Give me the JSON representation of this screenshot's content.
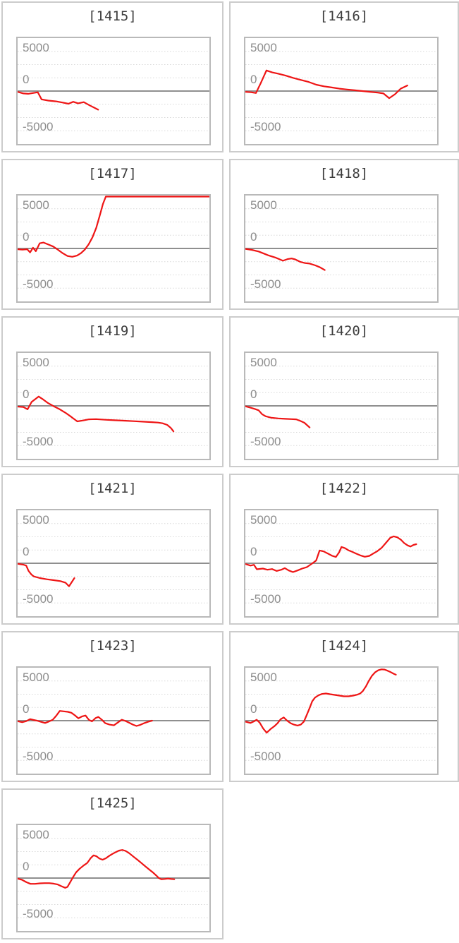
{
  "page": {
    "background": "#ffffff"
  },
  "colors": {
    "line": "#ee1515",
    "grid_dotted": "#d9d9d9",
    "zero_line": "#8f8f8f",
    "plot_border": "#b9b9b9",
    "box_border": "#cccccc",
    "title": "#3d3d3d",
    "tick_label": "#8d8d8d"
  },
  "axis": {
    "tick_labels": [
      "5000",
      "0",
      "-5000"
    ],
    "tick_values": [
      5000,
      0,
      -5000
    ],
    "ylim": [
      -6667,
      6667
    ],
    "gridline_interval": 1667,
    "zero_line_solid": true,
    "grid_on": true
  },
  "chart_data": [
    {
      "type": "line",
      "title": "[1415]",
      "ylim": [
        -6667,
        6667
      ],
      "points": [
        [
          0,
          -100
        ],
        [
          0.03,
          -300
        ],
        [
          0.055,
          -350
        ],
        [
          0.08,
          -250
        ],
        [
          0.105,
          -150
        ],
        [
          0.125,
          -1050
        ],
        [
          0.16,
          -1200
        ],
        [
          0.2,
          -1300
        ],
        [
          0.235,
          -1450
        ],
        [
          0.265,
          -1600
        ],
        [
          0.29,
          -1350
        ],
        [
          0.315,
          -1550
        ],
        [
          0.345,
          -1400
        ],
        [
          0.375,
          -1800
        ],
        [
          0.42,
          -2350
        ]
      ]
    },
    {
      "type": "line",
      "title": "[1416]",
      "ylim": [
        -6667,
        6667
      ],
      "points": [
        [
          0,
          -100
        ],
        [
          0.03,
          -150
        ],
        [
          0.055,
          -250
        ],
        [
          0.08,
          1000
        ],
        [
          0.11,
          2600
        ],
        [
          0.14,
          2350
        ],
        [
          0.17,
          2200
        ],
        [
          0.21,
          1950
        ],
        [
          0.25,
          1650
        ],
        [
          0.29,
          1400
        ],
        [
          0.33,
          1150
        ],
        [
          0.37,
          800
        ],
        [
          0.41,
          600
        ],
        [
          0.45,
          450
        ],
        [
          0.49,
          300
        ],
        [
          0.53,
          200
        ],
        [
          0.57,
          100
        ],
        [
          0.61,
          0
        ],
        [
          0.65,
          -100
        ],
        [
          0.69,
          -200
        ],
        [
          0.72,
          -300
        ],
        [
          0.75,
          -900
        ],
        [
          0.78,
          -400
        ],
        [
          0.81,
          300
        ],
        [
          0.845,
          700
        ]
      ]
    },
    {
      "type": "line",
      "title": "[1417]",
      "ylim": [
        -6667,
        6667
      ],
      "points": [
        [
          0,
          -100
        ],
        [
          0.025,
          -150
        ],
        [
          0.05,
          -100
        ],
        [
          0.065,
          -500
        ],
        [
          0.08,
          100
        ],
        [
          0.095,
          -350
        ],
        [
          0.115,
          650
        ],
        [
          0.135,
          750
        ],
        [
          0.16,
          500
        ],
        [
          0.185,
          250
        ],
        [
          0.21,
          -150
        ],
        [
          0.235,
          -600
        ],
        [
          0.26,
          -950
        ],
        [
          0.285,
          -1050
        ],
        [
          0.31,
          -900
        ],
        [
          0.33,
          -600
        ],
        [
          0.35,
          -150
        ],
        [
          0.37,
          500
        ],
        [
          0.39,
          1400
        ],
        [
          0.41,
          2600
        ],
        [
          0.43,
          4300
        ],
        [
          0.445,
          5600
        ],
        [
          0.46,
          6700
        ],
        [
          1,
          6700
        ]
      ]
    },
    {
      "type": "line",
      "title": "[1418]",
      "ylim": [
        -6667,
        6667
      ],
      "points": [
        [
          0,
          -50
        ],
        [
          0.033,
          -175
        ],
        [
          0.069,
          -380
        ],
        [
          0.105,
          -730
        ],
        [
          0.123,
          -900
        ],
        [
          0.16,
          -1170
        ],
        [
          0.196,
          -1550
        ],
        [
          0.22,
          -1345
        ],
        [
          0.241,
          -1260
        ],
        [
          0.26,
          -1375
        ],
        [
          0.287,
          -1700
        ],
        [
          0.311,
          -1840
        ],
        [
          0.335,
          -1900
        ],
        [
          0.365,
          -2135
        ],
        [
          0.389,
          -2370
        ],
        [
          0.414,
          -2720
        ]
      ]
    },
    {
      "type": "line",
      "title": "[1419]",
      "ylim": [
        -6667,
        6667
      ],
      "points": [
        [
          0,
          -90
        ],
        [
          0.03,
          -150
        ],
        [
          0.052,
          -440
        ],
        [
          0.073,
          500
        ],
        [
          0.11,
          1170
        ],
        [
          0.134,
          790
        ],
        [
          0.159,
          350
        ],
        [
          0.189,
          -60
        ],
        [
          0.22,
          -440
        ],
        [
          0.25,
          -880
        ],
        [
          0.28,
          -1400
        ],
        [
          0.311,
          -1960
        ],
        [
          0.341,
          -1840
        ],
        [
          0.372,
          -1700
        ],
        [
          0.409,
          -1670
        ],
        [
          0.457,
          -1755
        ],
        [
          0.506,
          -1815
        ],
        [
          0.555,
          -1870
        ],
        [
          0.604,
          -1930
        ],
        [
          0.652,
          -1990
        ],
        [
          0.701,
          -2050
        ],
        [
          0.732,
          -2110
        ],
        [
          0.756,
          -2195
        ],
        [
          0.78,
          -2400
        ],
        [
          0.799,
          -2780
        ],
        [
          0.813,
          -3220
        ]
      ]
    },
    {
      "type": "line",
      "title": "[1420]",
      "ylim": [
        -6667,
        6667
      ],
      "points": [
        [
          0,
          -50
        ],
        [
          0.027,
          -230
        ],
        [
          0.051,
          -410
        ],
        [
          0.069,
          -560
        ],
        [
          0.087,
          -1050
        ],
        [
          0.105,
          -1310
        ],
        [
          0.135,
          -1490
        ],
        [
          0.172,
          -1580
        ],
        [
          0.208,
          -1640
        ],
        [
          0.241,
          -1670
        ],
        [
          0.265,
          -1700
        ],
        [
          0.287,
          -1900
        ],
        [
          0.308,
          -2135
        ],
        [
          0.335,
          -2720
        ]
      ]
    },
    {
      "type": "line",
      "title": "[1421]",
      "ylim": [
        -6667,
        6667
      ],
      "points": [
        [
          0,
          -60
        ],
        [
          0.03,
          -175
        ],
        [
          0.045,
          -290
        ],
        [
          0.057,
          -960
        ],
        [
          0.071,
          -1400
        ],
        [
          0.085,
          -1665
        ],
        [
          0.116,
          -1870
        ],
        [
          0.152,
          -2015
        ],
        [
          0.189,
          -2135
        ],
        [
          0.223,
          -2250
        ],
        [
          0.25,
          -2455
        ],
        [
          0.268,
          -2895
        ],
        [
          0.296,
          -1870
        ]
      ]
    },
    {
      "type": "line",
      "title": "[1422]",
      "ylim": [
        -6667,
        6667
      ],
      "points": [
        [
          0,
          -90
        ],
        [
          0.027,
          -290
        ],
        [
          0.045,
          -200
        ],
        [
          0.06,
          -760
        ],
        [
          0.091,
          -670
        ],
        [
          0.115,
          -820
        ],
        [
          0.139,
          -730
        ],
        [
          0.163,
          -965
        ],
        [
          0.187,
          -820
        ],
        [
          0.206,
          -615
        ],
        [
          0.226,
          -905
        ],
        [
          0.248,
          -1110
        ],
        [
          0.272,
          -905
        ],
        [
          0.296,
          -670
        ],
        [
          0.32,
          -500
        ],
        [
          0.345,
          -90
        ],
        [
          0.369,
          350
        ],
        [
          0.387,
          1610
        ],
        [
          0.408,
          1490
        ],
        [
          0.432,
          1200
        ],
        [
          0.453,
          935
        ],
        [
          0.472,
          790
        ],
        [
          0.489,
          1375
        ],
        [
          0.501,
          2050
        ],
        [
          0.519,
          1900
        ],
        [
          0.537,
          1640
        ],
        [
          0.556,
          1460
        ],
        [
          0.577,
          1230
        ],
        [
          0.599,
          995
        ],
        [
          0.623,
          820
        ],
        [
          0.647,
          935
        ],
        [
          0.667,
          1230
        ],
        [
          0.688,
          1520
        ],
        [
          0.71,
          1930
        ],
        [
          0.732,
          2545
        ],
        [
          0.756,
          3215
        ],
        [
          0.774,
          3390
        ],
        [
          0.792,
          3275
        ],
        [
          0.81,
          2985
        ],
        [
          0.828,
          2545
        ],
        [
          0.846,
          2250
        ],
        [
          0.861,
          2105
        ],
        [
          0.877,
          2310
        ],
        [
          0.891,
          2400
        ]
      ]
    },
    {
      "type": "line",
      "title": "[1423]",
      "ylim": [
        -6667,
        6667
      ],
      "points": [
        [
          0,
          -60
        ],
        [
          0.024,
          -200
        ],
        [
          0.045,
          -60
        ],
        [
          0.065,
          200
        ],
        [
          0.083,
          90
        ],
        [
          0.101,
          0
        ],
        [
          0.122,
          -150
        ],
        [
          0.143,
          -290
        ],
        [
          0.162,
          -120
        ],
        [
          0.183,
          120
        ],
        [
          0.201,
          615
        ],
        [
          0.22,
          1230
        ],
        [
          0.24,
          1170
        ],
        [
          0.262,
          1110
        ],
        [
          0.28,
          995
        ],
        [
          0.299,
          670
        ],
        [
          0.317,
          290
        ],
        [
          0.335,
          525
        ],
        [
          0.354,
          645
        ],
        [
          0.372,
          90
        ],
        [
          0.388,
          -90
        ],
        [
          0.406,
          320
        ],
        [
          0.421,
          470
        ],
        [
          0.439,
          120
        ],
        [
          0.457,
          -320
        ],
        [
          0.479,
          -500
        ],
        [
          0.502,
          -585
        ],
        [
          0.524,
          -205
        ],
        [
          0.543,
          120
        ],
        [
          0.561,
          -30
        ],
        [
          0.582,
          -265
        ],
        [
          0.601,
          -500
        ],
        [
          0.62,
          -670
        ],
        [
          0.64,
          -525
        ],
        [
          0.662,
          -290
        ],
        [
          0.683,
          -120
        ],
        [
          0.701,
          0
        ]
      ]
    },
    {
      "type": "line",
      "title": "[1424]",
      "ylim": [
        -6667,
        6667
      ],
      "points": [
        [
          0,
          -120
        ],
        [
          0.027,
          -290
        ],
        [
          0.045,
          -90
        ],
        [
          0.059,
          120
        ],
        [
          0.075,
          -260
        ],
        [
          0.093,
          -995
        ],
        [
          0.111,
          -1520
        ],
        [
          0.132,
          -1050
        ],
        [
          0.151,
          -700
        ],
        [
          0.168,
          -320
        ],
        [
          0.184,
          175
        ],
        [
          0.2,
          410
        ],
        [
          0.216,
          30
        ],
        [
          0.236,
          -320
        ],
        [
          0.253,
          -500
        ],
        [
          0.272,
          -615
        ],
        [
          0.289,
          -500
        ],
        [
          0.305,
          -120
        ],
        [
          0.32,
          700
        ],
        [
          0.335,
          1580
        ],
        [
          0.349,
          2455
        ],
        [
          0.363,
          2895
        ],
        [
          0.381,
          3190
        ],
        [
          0.399,
          3360
        ],
        [
          0.42,
          3420
        ],
        [
          0.441,
          3335
        ],
        [
          0.466,
          3245
        ],
        [
          0.49,
          3160
        ],
        [
          0.514,
          3070
        ],
        [
          0.538,
          3070
        ],
        [
          0.562,
          3160
        ],
        [
          0.583,
          3275
        ],
        [
          0.599,
          3420
        ],
        [
          0.613,
          3745
        ],
        [
          0.629,
          4330
        ],
        [
          0.644,
          5030
        ],
        [
          0.66,
          5645
        ],
        [
          0.676,
          6080
        ],
        [
          0.693,
          6345
        ],
        [
          0.71,
          6465
        ],
        [
          0.726,
          6435
        ],
        [
          0.741,
          6290
        ],
        [
          0.758,
          6110
        ],
        [
          0.774,
          5905
        ],
        [
          0.785,
          5790
        ]
      ]
    },
    {
      "type": "line",
      "title": "[1425]",
      "ylim": [
        -6667,
        6667
      ],
      "points": [
        [
          0,
          -60
        ],
        [
          0.024,
          -235
        ],
        [
          0.046,
          -525
        ],
        [
          0.067,
          -730
        ],
        [
          0.091,
          -730
        ],
        [
          0.116,
          -670
        ],
        [
          0.14,
          -640
        ],
        [
          0.165,
          -640
        ],
        [
          0.187,
          -700
        ],
        [
          0.207,
          -790
        ],
        [
          0.228,
          -1025
        ],
        [
          0.248,
          -1230
        ],
        [
          0.26,
          -1110
        ],
        [
          0.274,
          -525
        ],
        [
          0.289,
          120
        ],
        [
          0.305,
          730
        ],
        [
          0.323,
          1170
        ],
        [
          0.344,
          1580
        ],
        [
          0.363,
          1900
        ],
        [
          0.382,
          2545
        ],
        [
          0.396,
          2865
        ],
        [
          0.411,
          2750
        ],
        [
          0.427,
          2455
        ],
        [
          0.443,
          2310
        ],
        [
          0.46,
          2485
        ],
        [
          0.477,
          2780
        ],
        [
          0.494,
          3040
        ],
        [
          0.512,
          3275
        ],
        [
          0.53,
          3480
        ],
        [
          0.546,
          3540
        ],
        [
          0.563,
          3420
        ],
        [
          0.582,
          3130
        ],
        [
          0.604,
          2690
        ],
        [
          0.626,
          2280
        ],
        [
          0.648,
          1840
        ],
        [
          0.668,
          1435
        ],
        [
          0.689,
          1025
        ],
        [
          0.707,
          675
        ],
        [
          0.723,
          320
        ],
        [
          0.735,
          30
        ],
        [
          0.75,
          -150
        ],
        [
          0.766,
          -120
        ],
        [
          0.784,
          -60
        ],
        [
          0.801,
          -120
        ],
        [
          0.817,
          -150
        ]
      ]
    }
  ]
}
